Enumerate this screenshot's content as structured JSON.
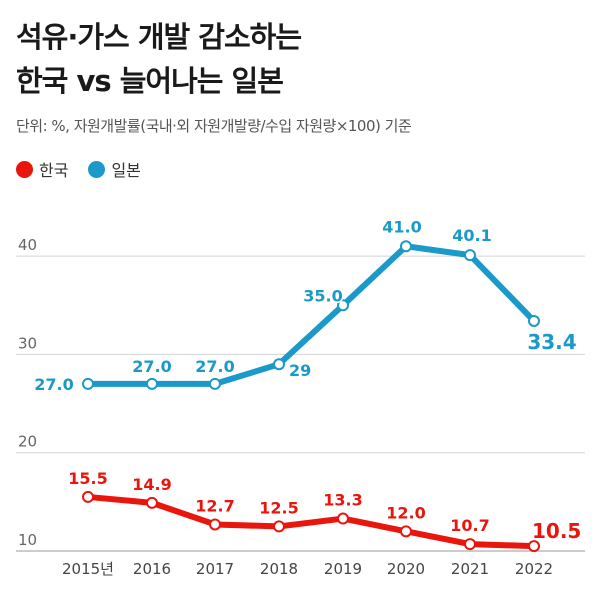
{
  "title_line1": "석유·가스 개발 감소하는",
  "title_line2": "한국 vs 늘어나는 일본",
  "unit_note": "단위: %, 자원개발률(국내·외 자원개발량/수입 자원량×100) 기준",
  "colors": {
    "korea": "#e8160c",
    "japan": "#1b9ac9",
    "grid": "#d4d4d4",
    "axis_text": "#555555"
  },
  "chart_data": {
    "type": "line",
    "categories": [
      "2015년",
      "2016",
      "2017",
      "2018",
      "2019",
      "2020",
      "2021",
      "2022"
    ],
    "ylim": [
      10,
      45
    ],
    "yticks": [
      10,
      20,
      30,
      40
    ],
    "grid": true,
    "legend": "top-left",
    "series": [
      {
        "name": "한국",
        "color": "#e8160c",
        "values": [
          15.5,
          14.9,
          12.7,
          12.5,
          13.3,
          12.0,
          10.7,
          10.5
        ],
        "labels": [
          "15.5",
          "14.9",
          "12.7",
          "12.5",
          "13.3",
          "12.0",
          "10.7",
          "10.5"
        ]
      },
      {
        "name": "일본",
        "color": "#1b9ac9",
        "values": [
          27.0,
          27.0,
          27.0,
          29,
          35.0,
          41.0,
          40.1,
          33.4
        ],
        "labels": [
          "27.0",
          "27.0",
          "27.0",
          "29",
          "35.0",
          "41.0",
          "40.1",
          "33.4"
        ]
      }
    ]
  }
}
